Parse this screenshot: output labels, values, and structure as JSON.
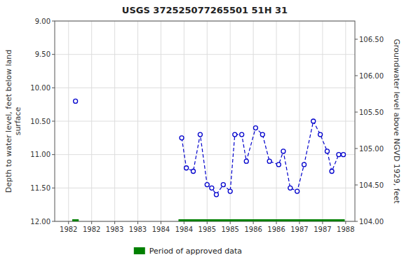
{
  "chart_data": {
    "type": "line",
    "title": "USGS 372525077265501 51H 31",
    "ylabel": "Depth to water level, feet below land\nsurface",
    "y2label": "Groundwater level above NGVD 1929, feet",
    "xlim": [
      1981.7,
      1988.2
    ],
    "xticks": [
      1982,
      {
        "value": 1982.5,
        "label": "1982"
      },
      1983,
      {
        "value": 1983.5,
        "label": "1983"
      },
      1984,
      {
        "value": 1984.5,
        "label": "1984"
      },
      1985,
      {
        "value": 1985.5,
        "label": "1985"
      },
      1986,
      {
        "value": 1986.5,
        "label": "1986"
      },
      1987,
      {
        "value": 1987.5,
        "label": "1987"
      },
      1988
    ],
    "ylim": [
      12.0,
      9.0
    ],
    "yticks": [
      {
        "value": 9.0,
        "label": "9.00"
      },
      {
        "value": 9.5,
        "label": "9.50"
      },
      {
        "value": 10.0,
        "label": "10.00"
      },
      {
        "value": 10.5,
        "label": "10.50"
      },
      {
        "value": 11.0,
        "label": "11.00"
      },
      {
        "value": 11.5,
        "label": "11.50"
      },
      {
        "value": 12.0,
        "label": "12.00"
      }
    ],
    "y2lim": [
      104.0,
      106.75
    ],
    "y2ticks": [
      {
        "value": 104.0,
        "label": "104.00"
      },
      {
        "value": 104.5,
        "label": "104.50"
      },
      {
        "value": 105.0,
        "label": "105.00"
      },
      {
        "value": 105.5,
        "label": "105.50"
      },
      {
        "value": 106.0,
        "label": "106.00"
      },
      {
        "value": 106.5,
        "label": "106.50"
      }
    ],
    "grid": true,
    "legend": "bottom",
    "series": [
      {
        "type": "scatter",
        "color": "#0000cc",
        "marker": "circle-open",
        "line_style": "none",
        "x": [
          1982.15
        ],
        "values": [
          10.2
        ]
      },
      {
        "type": "line",
        "color": "#0000cc",
        "marker": "circle-open",
        "line_style": "dashed",
        "x": [
          1984.45,
          1984.55,
          1984.7,
          1984.85,
          1985.0,
          1985.1,
          1985.2,
          1985.35,
          1985.5,
          1985.6,
          1985.75,
          1985.85,
          1986.05,
          1986.2,
          1986.35,
          1986.55,
          1986.65,
          1986.8,
          1986.95,
          1987.1,
          1987.3,
          1987.45,
          1987.6,
          1987.7,
          1987.85,
          1987.95
        ],
        "values": [
          10.75,
          11.2,
          11.25,
          10.7,
          11.45,
          11.5,
          11.6,
          11.45,
          11.55,
          10.7,
          10.7,
          11.1,
          10.6,
          10.7,
          11.1,
          11.15,
          10.95,
          11.5,
          11.55,
          11.15,
          10.5,
          10.7,
          10.95,
          11.25,
          11.0,
          11.0
        ]
      },
      {
        "type": "range",
        "name": "Period of approved data",
        "color": "#008000",
        "ranges": [
          [
            1982.08,
            1982.22
          ],
          [
            1984.38,
            1987.98
          ]
        ],
        "y": 12.0
      }
    ]
  }
}
